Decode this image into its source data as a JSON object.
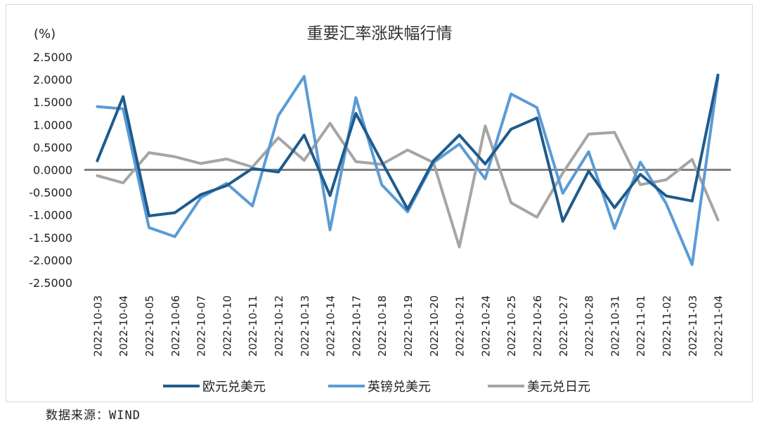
{
  "source": "数据来源：WIND",
  "chart_data": {
    "type": "line",
    "title": "重要汇率涨跌幅行情",
    "yunit": "(%)",
    "ylim": [
      -2.5,
      2.5
    ],
    "ytick_step": 0.5,
    "yticks": [
      "2.5000",
      "2.0000",
      "1.5000",
      "1.0000",
      "0.5000",
      "0.0000",
      "-0.5000",
      "-1.0000",
      "-1.5000",
      "-2.0000",
      "-2.5000"
    ],
    "grid": false,
    "legend": "bottom",
    "categories": [
      "2022-10-03",
      "2022-10-04",
      "2022-10-05",
      "2022-10-06",
      "2022-10-07",
      "2022-10-10",
      "2022-10-11",
      "2022-10-12",
      "2022-10-13",
      "2022-10-14",
      "2022-10-17",
      "2022-10-18",
      "2022-10-19",
      "2022-10-20",
      "2022-10-21",
      "2022-10-24",
      "2022-10-25",
      "2022-10-26",
      "2022-10-27",
      "2022-10-28",
      "2022-10-31",
      "2022-11-01",
      "2022-11-02",
      "2022-11-03",
      "2022-11-04"
    ],
    "series": [
      {
        "name": "欧元兑美元",
        "color": "#1f5b8c",
        "values": [
          0.2,
          1.62,
          -1.02,
          -0.95,
          -0.55,
          -0.35,
          0.03,
          -0.05,
          0.77,
          -0.57,
          1.25,
          0.18,
          -0.87,
          0.2,
          0.77,
          0.13,
          0.9,
          1.15,
          -1.14,
          -0.03,
          -0.84,
          -0.1,
          -0.58,
          -0.69,
          2.1
        ]
      },
      {
        "name": "英镑兑美元",
        "color": "#5b9bd5",
        "values": [
          1.4,
          1.35,
          -1.28,
          -1.48,
          -0.62,
          -0.3,
          -0.8,
          1.2,
          2.07,
          -1.33,
          1.6,
          -0.33,
          -0.93,
          0.16,
          0.57,
          -0.2,
          1.68,
          1.38,
          -0.52,
          0.4,
          -1.3,
          0.17,
          -0.75,
          -2.1,
          2.05
        ]
      },
      {
        "name": "美元兑日元",
        "color": "#a5a5a5",
        "values": [
          -0.13,
          -0.29,
          0.38,
          0.29,
          0.14,
          0.24,
          0.06,
          0.71,
          0.21,
          1.03,
          0.18,
          0.12,
          0.44,
          0.16,
          -1.71,
          0.97,
          -0.73,
          -1.05,
          -0.07,
          0.79,
          0.83,
          -0.33,
          -0.22,
          0.23,
          -1.11
        ]
      }
    ]
  }
}
